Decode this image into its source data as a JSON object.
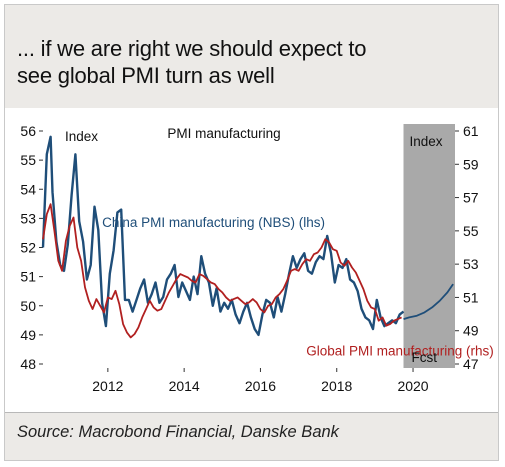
{
  "header": {
    "title_line1": "... if we are right we should expect to",
    "title_line2": "see global PMI turn as well"
  },
  "footer": {
    "source": "Source: Macrobond Financial, Danske Bank"
  },
  "chart_data": {
    "type": "line",
    "title": "PMI manufacturing",
    "left_axis_label": "Index",
    "right_axis_label": "Index",
    "forecast_label": "Fcst",
    "forecast_start": 2019.75,
    "xlim": [
      2010.3,
      2021.1
    ],
    "ylim_left": [
      48,
      56
    ],
    "ylim_right": [
      47,
      61
    ],
    "x_ticks": [
      2012,
      2014,
      2016,
      2018,
      2020
    ],
    "x_tick_labels": [
      "2012",
      "2014",
      "2016",
      "2018",
      "2020"
    ],
    "y_ticks_left": [
      48,
      49,
      50,
      51,
      52,
      53,
      54,
      55,
      56
    ],
    "y_tick_labels_left": [
      "48",
      "49",
      "50",
      "51",
      "52",
      "53",
      "54",
      "55",
      "56"
    ],
    "y_ticks_right": [
      47,
      49,
      51,
      53,
      55,
      57,
      59,
      61
    ],
    "y_tick_labels_right": [
      "47",
      "49",
      "51",
      "53",
      "55",
      "57",
      "59",
      "61"
    ],
    "series": [
      {
        "name": "China PMI manufacturing (NBS) (lhs)",
        "axis": "left",
        "color": "#1f4e79",
        "label_x": 2011.85,
        "label_y": 52.7,
        "x": [
          2010.3,
          2010.4,
          2010.5,
          2010.55,
          2010.65,
          2010.75,
          2010.85,
          2010.95,
          2011.05,
          2011.15,
          2011.25,
          2011.35,
          2011.45,
          2011.55,
          2011.65,
          2011.75,
          2011.85,
          2011.95,
          2012.05,
          2012.15,
          2012.25,
          2012.35,
          2012.45,
          2012.55,
          2012.65,
          2012.75,
          2012.85,
          2012.95,
          2013.05,
          2013.15,
          2013.25,
          2013.35,
          2013.45,
          2013.55,
          2013.65,
          2013.75,
          2013.85,
          2013.95,
          2014.05,
          2014.15,
          2014.25,
          2014.35,
          2014.45,
          2014.55,
          2014.65,
          2014.75,
          2014.85,
          2014.95,
          2015.05,
          2015.15,
          2015.25,
          2015.35,
          2015.45,
          2015.55,
          2015.65,
          2015.75,
          2015.85,
          2015.95,
          2016.05,
          2016.15,
          2016.25,
          2016.35,
          2016.45,
          2016.55,
          2016.65,
          2016.75,
          2016.85,
          2016.95,
          2017.05,
          2017.15,
          2017.25,
          2017.35,
          2017.45,
          2017.55,
          2017.65,
          2017.75,
          2017.85,
          2017.95,
          2018.05,
          2018.15,
          2018.25,
          2018.35,
          2018.45,
          2018.55,
          2018.65,
          2018.75,
          2018.85,
          2018.95,
          2019.05,
          2019.15,
          2019.25,
          2019.35,
          2019.45,
          2019.55,
          2019.65,
          2019.75
        ],
        "y": [
          52.0,
          55.2,
          55.8,
          53.9,
          52.2,
          51.4,
          51.2,
          52.1,
          53.8,
          55.2,
          52.9,
          52.2,
          50.9,
          51.4,
          53.4,
          52.6,
          50.1,
          49.3,
          51.1,
          51.9,
          53.2,
          53.3,
          50.2,
          50.2,
          49.8,
          50.2,
          50.6,
          50.9,
          50.1,
          50.4,
          50.8,
          50.1,
          50.3,
          50.9,
          51.1,
          51.4,
          50.3,
          50.8,
          50.5,
          50.2,
          51.0,
          50.4,
          51.7,
          51.1,
          50.8,
          50.0,
          50.6,
          49.8,
          50.1,
          49.9,
          50.2,
          49.7,
          49.4,
          49.8,
          50.1,
          49.6,
          49.2,
          49.0,
          49.7,
          50.2,
          50.1,
          49.6,
          50.3,
          49.8,
          50.4,
          51.1,
          51.7,
          51.3,
          51.6,
          51.8,
          51.2,
          51.1,
          51.5,
          51.7,
          51.6,
          52.4,
          51.8,
          50.8,
          51.4,
          51.3,
          51.6,
          50.9,
          50.8,
          50.5,
          49.9,
          49.6,
          49.5,
          49.2,
          50.2,
          49.6,
          49.3,
          49.4,
          49.5,
          49.4,
          49.7,
          49.8
        ]
      },
      {
        "name": "Global PMI manufacturing (rhs)",
        "axis": "right",
        "color": "#b12020",
        "label_x": 2017.2,
        "label_y": 47.5,
        "x": [
          2010.3,
          2010.4,
          2010.5,
          2010.6,
          2010.7,
          2010.8,
          2010.9,
          2011.0,
          2011.1,
          2011.2,
          2011.3,
          2011.4,
          2011.5,
          2011.6,
          2011.7,
          2011.8,
          2011.9,
          2012.0,
          2012.1,
          2012.2,
          2012.3,
          2012.4,
          2012.5,
          2012.6,
          2012.7,
          2012.8,
          2012.9,
          2013.0,
          2013.1,
          2013.2,
          2013.3,
          2013.4,
          2013.5,
          2013.6,
          2013.7,
          2013.8,
          2013.9,
          2014.0,
          2014.1,
          2014.2,
          2014.3,
          2014.4,
          2014.5,
          2014.6,
          2014.7,
          2014.8,
          2014.9,
          2015.0,
          2015.1,
          2015.2,
          2015.3,
          2015.4,
          2015.5,
          2015.6,
          2015.7,
          2015.8,
          2015.9,
          2016.0,
          2016.1,
          2016.2,
          2016.3,
          2016.4,
          2016.5,
          2016.6,
          2016.7,
          2016.8,
          2016.9,
          2017.0,
          2017.1,
          2017.2,
          2017.3,
          2017.4,
          2017.5,
          2017.6,
          2017.7,
          2017.8,
          2017.9,
          2018.0,
          2018.1,
          2018.2,
          2018.3,
          2018.4,
          2018.5,
          2018.6,
          2018.7,
          2018.8,
          2018.9,
          2019.0,
          2019.1,
          2019.2,
          2019.3,
          2019.4,
          2019.5,
          2019.6,
          2019.7
        ],
        "y": [
          54.5,
          56.0,
          56.6,
          55.0,
          53.2,
          52.6,
          54.4,
          55.3,
          55.8,
          54.0,
          53.2,
          51.6,
          50.8,
          50.3,
          50.9,
          50.5,
          50.1,
          51.0,
          50.9,
          51.4,
          50.6,
          49.4,
          48.9,
          48.6,
          48.8,
          49.2,
          49.8,
          50.3,
          50.8,
          50.4,
          50.2,
          50.3,
          50.8,
          51.3,
          51.7,
          52.1,
          52.4,
          52.3,
          52.2,
          52.0,
          51.9,
          52.4,
          52.3,
          52.1,
          51.9,
          51.8,
          51.5,
          51.3,
          51.0,
          50.8,
          50.9,
          51.0,
          50.8,
          50.6,
          50.7,
          50.9,
          50.7,
          50.3,
          50.1,
          50.5,
          50.6,
          51.0,
          51.2,
          51.5,
          52.0,
          52.6,
          52.7,
          52.6,
          53.0,
          53.3,
          53.2,
          53.6,
          53.7,
          54.0,
          54.5,
          54.3,
          53.9,
          53.8,
          53.1,
          52.9,
          53.2,
          52.8,
          52.5,
          52.0,
          51.5,
          50.8,
          50.4,
          50.3,
          49.6,
          49.8,
          49.3,
          49.4,
          49.6,
          49.7,
          49.8
        ]
      },
      {
        "name": "",
        "axis": "right",
        "color": "#1f4e79",
        "x": [
          2019.75,
          2019.9,
          2020.1,
          2020.3,
          2020.5,
          2020.7,
          2020.9,
          2021.05
        ],
        "y": [
          49.7,
          49.8,
          49.9,
          50.1,
          50.4,
          50.8,
          51.3,
          51.8
        ]
      }
    ]
  }
}
